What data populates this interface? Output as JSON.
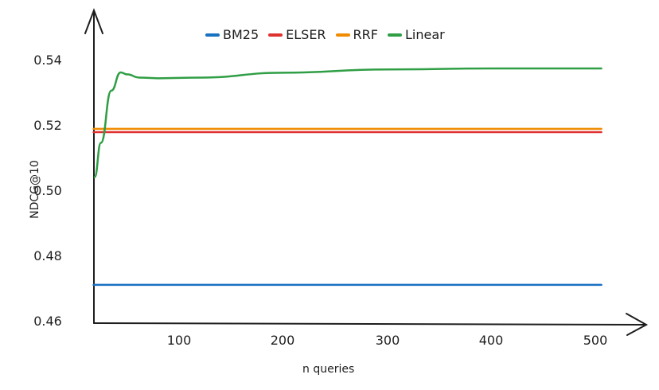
{
  "chart_data": {
    "type": "line",
    "title": "",
    "xlabel": "n queries",
    "ylabel": "NDCG@10",
    "xlim": [
      18,
      505
    ],
    "ylim": [
      0.46,
      0.55
    ],
    "x_ticks": [
      "100",
      "200",
      "300",
      "400",
      "500"
    ],
    "y_ticks": [
      "0.46",
      "0.48",
      "0.50",
      "0.52",
      "0.54"
    ],
    "grid": false,
    "legend_position": "top",
    "series": [
      {
        "name": "BM25",
        "color": "#1971c2",
        "x": [
          18,
          505
        ],
        "values": [
          0.4715,
          0.4715
        ]
      },
      {
        "name": "ELSER",
        "color": "#e03131",
        "x": [
          18,
          505
        ],
        "values": [
          0.5183,
          0.5183
        ]
      },
      {
        "name": "RRF",
        "color": "#f08c00",
        "x": [
          18,
          505
        ],
        "values": [
          0.5193,
          0.5193
        ]
      },
      {
        "name": "Linear",
        "color": "#2f9e44",
        "x": [
          19,
          25,
          35,
          44,
          50,
          62,
          80,
          120,
          200,
          300,
          400,
          505
        ],
        "values": [
          0.5045,
          0.515,
          0.531,
          0.5366,
          0.536,
          0.535,
          0.5348,
          0.535,
          0.5365,
          0.5375,
          0.5378,
          0.5378
        ]
      }
    ]
  },
  "legend": {
    "items": [
      {
        "label": "BM25",
        "color": "#1971c2"
      },
      {
        "label": "ELSER",
        "color": "#e03131"
      },
      {
        "label": "RRF",
        "color": "#f08c00"
      },
      {
        "label": "Linear",
        "color": "#2f9e44"
      }
    ]
  },
  "axes": {
    "x_label": "n queries",
    "y_label": "NDCG@10",
    "x_ticks": [
      "100",
      "200",
      "300",
      "400",
      "500"
    ],
    "y_ticks": [
      "0.54",
      "0.52",
      "0.50",
      "0.48",
      "0.46"
    ]
  }
}
